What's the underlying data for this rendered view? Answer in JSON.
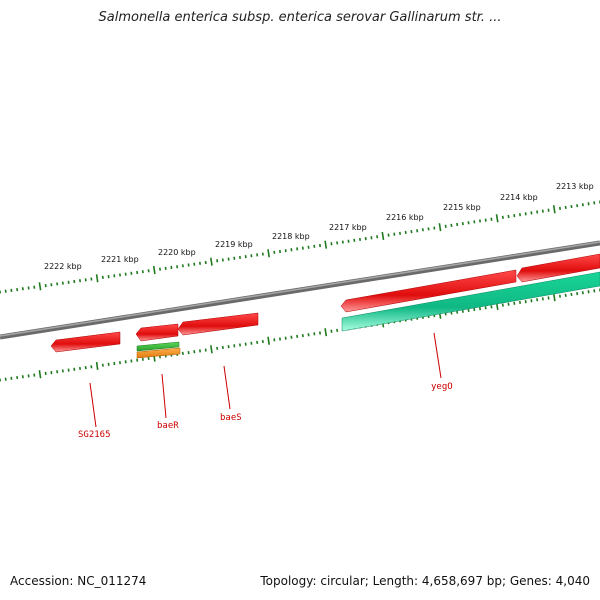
{
  "title": "Salmonella enterica subsp. enterica serovar Gallinarum str. ...",
  "accession": "Accession: NC_011274",
  "summary": "Topology: circular; Length: 4,658,697 bp; Genes: 4,040",
  "colors": {
    "backbone": "#808080",
    "tick": "#1f7a1f",
    "gene_forward": "#ee1c1c",
    "gene_cds_green": "#3cc43c",
    "gene_rna_orange": "#f7941d",
    "gene_teal": "#19e8a8",
    "label": "#cc0000"
  },
  "kbp_labels": [
    "2222 kbp",
    "2221 kbp",
    "2220 kbp",
    "2219 kbp",
    "2218 kbp",
    "2217 kbp",
    "2216 kbp",
    "2215 kbp",
    "2214 kbp",
    "2213 kbp"
  ],
  "gene_labels": [
    "SG2165",
    "baeR",
    "baeS",
    "yegO"
  ]
}
